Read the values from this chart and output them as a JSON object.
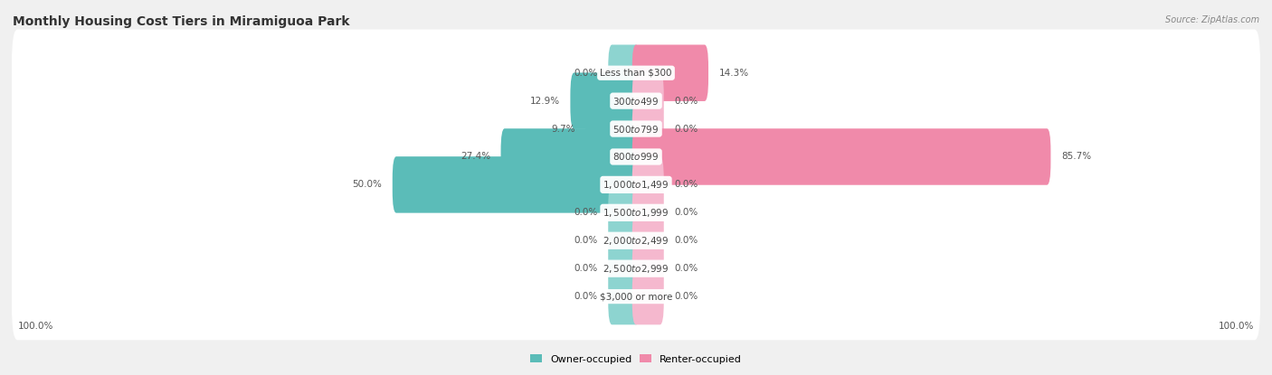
{
  "title": "Monthly Housing Cost Tiers in Miramiguoa Park",
  "source": "Source: ZipAtlas.com",
  "categories": [
    "Less than $300",
    "$300 to $499",
    "$500 to $799",
    "$800 to $999",
    "$1,000 to $1,499",
    "$1,500 to $1,999",
    "$2,000 to $2,499",
    "$2,500 to $2,999",
    "$3,000 or more"
  ],
  "owner_values": [
    0.0,
    12.9,
    9.7,
    27.4,
    50.0,
    0.0,
    0.0,
    0.0,
    0.0
  ],
  "renter_values": [
    14.3,
    0.0,
    0.0,
    85.7,
    0.0,
    0.0,
    0.0,
    0.0,
    0.0
  ],
  "owner_color": "#5bbcb8",
  "owner_color_light": "#8dd4d0",
  "renter_color": "#f08aaa",
  "renter_color_light": "#f5b8ce",
  "bg_color": "#f0f0f0",
  "row_bg": "#ffffff",
  "max_value": 100.0,
  "stub_size": 5.0,
  "left_label": "100.0%",
  "right_label": "100.0%",
  "legend_owner": "Owner-occupied",
  "legend_renter": "Renter-occupied",
  "title_fontsize": 10,
  "source_fontsize": 7,
  "label_fontsize": 7.5,
  "cat_fontsize": 7.5,
  "legend_fontsize": 8
}
